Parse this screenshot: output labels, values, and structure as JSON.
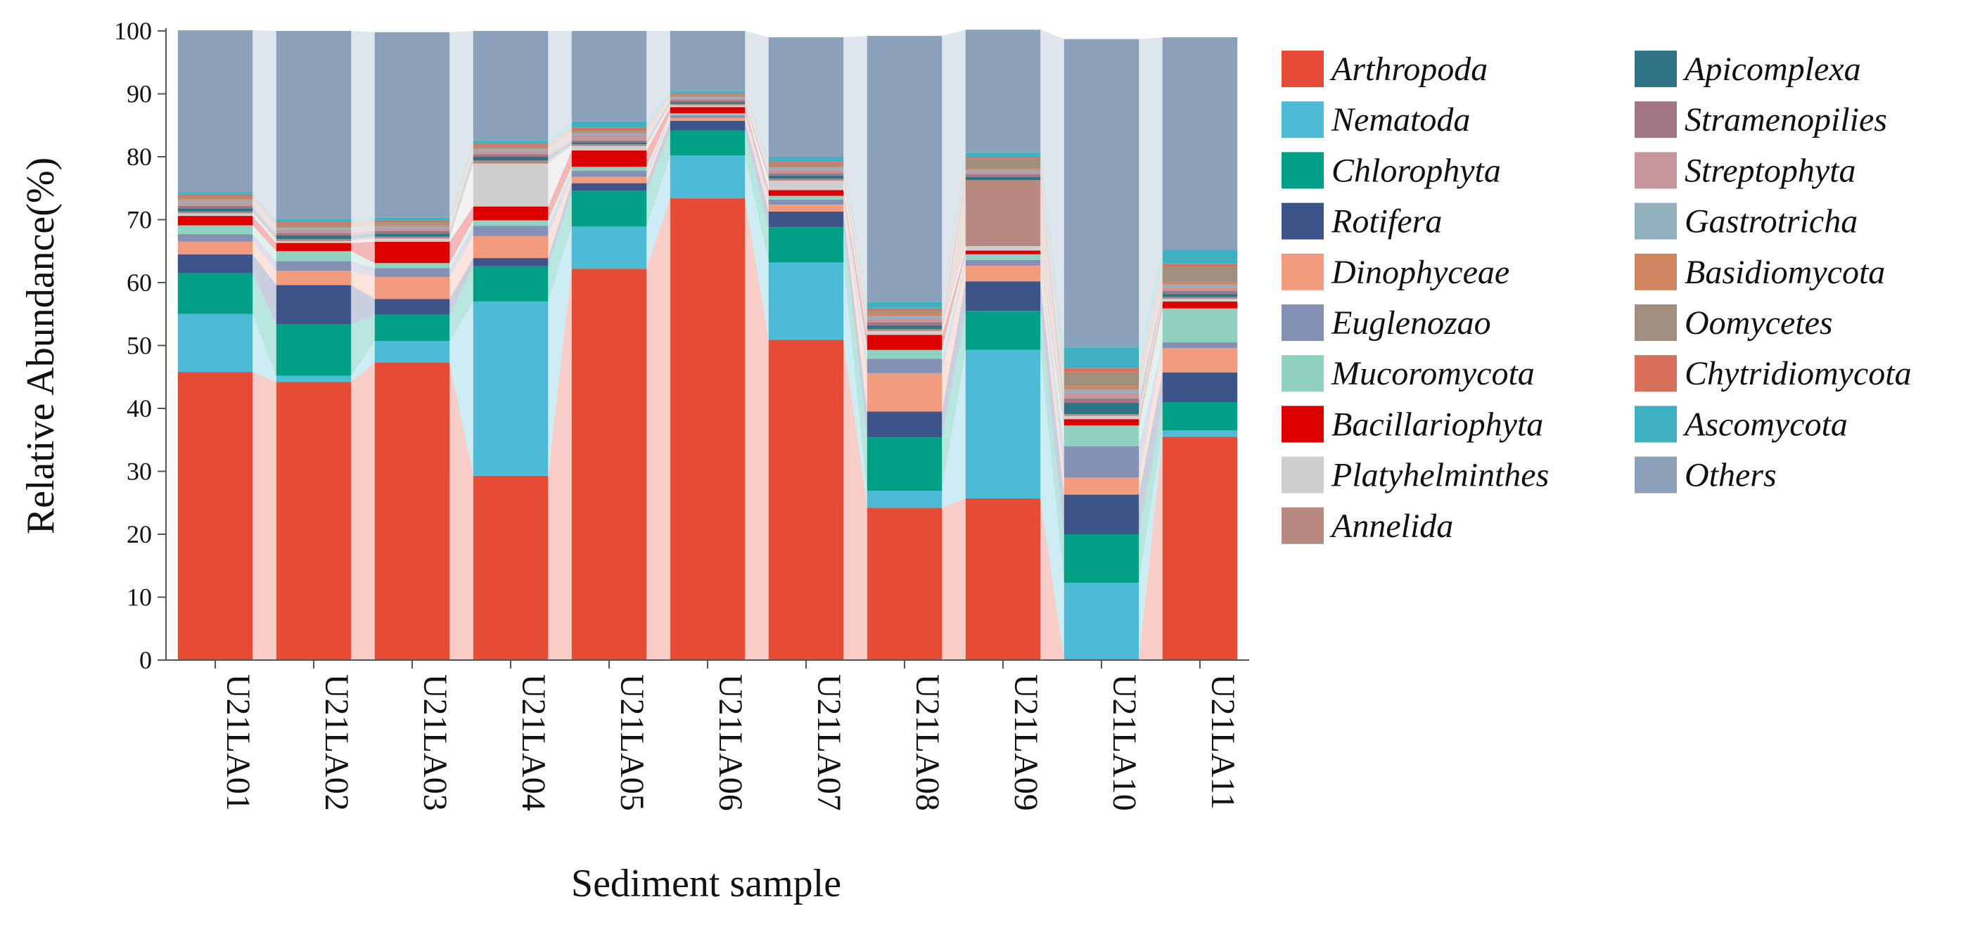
{
  "chart_data": {
    "type": "bar",
    "stacked": true,
    "xlabel": "Sediment sample",
    "ylabel": "Relative Abundance(%)",
    "ylim": [
      0,
      100
    ],
    "yticks": [
      0,
      10,
      20,
      30,
      40,
      50,
      60,
      70,
      80,
      90,
      100
    ],
    "categories": [
      "U21LA01",
      "U21LA02",
      "U21LA03",
      "U21LA04",
      "U21LA05",
      "U21LA06",
      "U21LA07",
      "U21LA08",
      "U21LA09",
      "U21LA10",
      "U21LA11"
    ],
    "legend_position": "right",
    "series": [
      {
        "name": "Arthropoda",
        "color": "#E64B35",
        "values": [
          45.8,
          44.2,
          47.3,
          29.3,
          62.2,
          73.4,
          50.9,
          24.2,
          25.7,
          0.0,
          35.5
        ]
      },
      {
        "name": "Nematoda",
        "color": "#4DBBD5",
        "values": [
          9.2,
          1.0,
          3.4,
          27.7,
          6.7,
          6.8,
          12.3,
          2.7,
          23.6,
          12.3,
          1.0
        ]
      },
      {
        "name": "Chlorophyta",
        "color": "#00A087",
        "values": [
          6.5,
          8.2,
          4.2,
          5.6,
          5.7,
          4.0,
          5.6,
          8.5,
          6.2,
          7.7,
          4.5
        ]
      },
      {
        "name": "Rotifera",
        "color": "#3C5488",
        "values": [
          3.0,
          6.2,
          2.5,
          1.3,
          1.2,
          1.5,
          2.5,
          4.1,
          4.7,
          6.3,
          4.7
        ]
      },
      {
        "name": "Dinophyceae",
        "color": "#F39B7F",
        "values": [
          2.0,
          2.3,
          3.5,
          3.5,
          1.0,
          0.5,
          1.1,
          6.1,
          2.5,
          2.7,
          3.9
        ]
      },
      {
        "name": "Euglenozao",
        "color": "#8491B4",
        "values": [
          1.2,
          1.5,
          1.4,
          1.6,
          1.0,
          0.4,
          0.8,
          2.3,
          0.9,
          5.0,
          0.9
        ]
      },
      {
        "name": "Mucoromycota",
        "color": "#91D1C2",
        "values": [
          1.4,
          1.6,
          0.8,
          0.9,
          0.6,
          0.3,
          0.6,
          1.4,
          0.9,
          3.3,
          5.4
        ]
      },
      {
        "name": "Bacillariophyta",
        "color": "#DC0000",
        "values": [
          1.5,
          1.3,
          3.4,
          2.2,
          2.6,
          1.0,
          0.9,
          2.4,
          0.6,
          1.0,
          1.1
        ]
      },
      {
        "name": "Platyhelminthes",
        "color": "#CFCFCF",
        "values": [
          0.4,
          0.3,
          0.5,
          6.8,
          0.7,
          0.3,
          1.5,
          0.6,
          0.7,
          0.5,
          0.4
        ]
      },
      {
        "name": "Annelida",
        "color": "#B9887F",
        "values": [
          0.3,
          0.3,
          0.3,
          0.5,
          0.3,
          0.2,
          0.3,
          0.3,
          10.5,
          0.3,
          0.3
        ]
      },
      {
        "name": "Apicomplexa",
        "color": "#2F7486",
        "values": [
          0.5,
          0.6,
          0.5,
          0.6,
          0.3,
          0.3,
          0.5,
          0.6,
          0.5,
          1.8,
          0.5
        ]
      },
      {
        "name": "Stramenopilies",
        "color": "#A07683",
        "values": [
          0.4,
          0.4,
          0.4,
          0.4,
          0.3,
          0.3,
          0.4,
          0.5,
          0.4,
          0.7,
          0.5
        ]
      },
      {
        "name": "Streptophyta",
        "color": "#C7959C",
        "values": [
          0.5,
          0.5,
          0.5,
          0.5,
          0.8,
          0.3,
          0.5,
          0.6,
          0.4,
          0.9,
          0.6
        ]
      },
      {
        "name": "Gastrotricha",
        "color": "#90B0BE",
        "values": [
          0.4,
          0.3,
          0.3,
          0.3,
          0.3,
          0.2,
          0.4,
          0.4,
          0.3,
          0.5,
          0.4
        ]
      },
      {
        "name": "Basidiomycota",
        "color": "#D08560",
        "values": [
          0.3,
          0.3,
          0.3,
          0.3,
          0.3,
          0.2,
          0.3,
          0.4,
          0.3,
          0.5,
          0.4
        ]
      },
      {
        "name": "Oomycetes",
        "color": "#A28E7E",
        "values": [
          0.3,
          0.3,
          0.3,
          0.3,
          0.3,
          0.2,
          0.3,
          0.4,
          1.5,
          2.3,
          2.4
        ]
      },
      {
        "name": "Chytridiomycota",
        "color": "#D9705C",
        "values": [
          0.3,
          0.3,
          0.3,
          0.3,
          0.3,
          0.2,
          0.3,
          0.4,
          0.3,
          0.6,
          0.5
        ]
      },
      {
        "name": "Ascomycota",
        "color": "#3FB1C2",
        "values": [
          0.3,
          0.5,
          0.4,
          0.5,
          1.0,
          0.3,
          0.8,
          1.0,
          0.7,
          3.3,
          2.2
        ]
      },
      {
        "name": "Others",
        "color": "#8AA1B9",
        "values": [
          25.8,
          29.9,
          29.5,
          17.4,
          14.4,
          9.6,
          19.0,
          42.3,
          19.5,
          49.0,
          33.8
        ]
      }
    ]
  }
}
